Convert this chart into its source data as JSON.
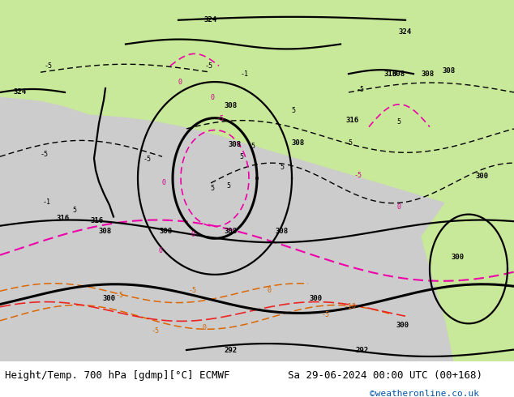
{
  "title_left": "Height/Temp. 700 hPa [gdmp][°C] ECMWF",
  "title_right": "Sa 29-06-2024 00:00 UTC (00+168)",
  "credit": "©weatheronline.co.uk",
  "footer_color": "#ffffff",
  "title_fontsize": 9,
  "credit_fontsize": 8,
  "credit_color": "#0055aa"
}
